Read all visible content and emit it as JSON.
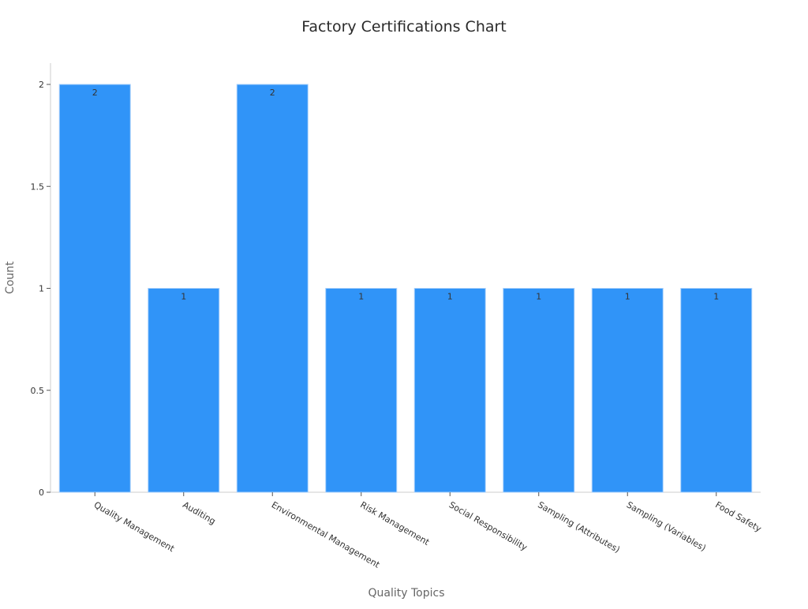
{
  "chart_data": {
    "type": "bar",
    "title": "Factory Certifications Chart",
    "xlabel": "Quality Topics",
    "ylabel": "Count",
    "categories": [
      "Quality Management",
      "Auditing",
      "Environmental Management",
      "Risk Management",
      "Social Responsibility",
      "Sampling (Attributes)",
      "Sampling (Variables)",
      "Food Safety"
    ],
    "values": [
      2,
      1,
      2,
      1,
      1,
      1,
      1,
      1
    ],
    "data_labels": [
      "2",
      "1",
      "2",
      "1",
      "1",
      "1",
      "1",
      "1"
    ],
    "ylim": [
      0,
      2.1
    ],
    "yticks": [
      0,
      0.5,
      1,
      1.5,
      2
    ],
    "ytick_labels": [
      "0",
      "0.5",
      "1",
      "1.5",
      "2"
    ],
    "grid": false,
    "legend": "none",
    "bar_color": "#3094f8"
  }
}
